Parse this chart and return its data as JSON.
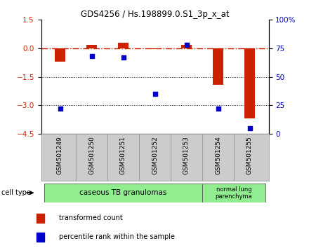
{
  "title": "GDS4256 / Hs.198899.0.S1_3p_x_at",
  "samples": [
    "GSM501249",
    "GSM501250",
    "GSM501251",
    "GSM501252",
    "GSM501253",
    "GSM501254",
    "GSM501255"
  ],
  "red_values": [
    -0.7,
    0.2,
    0.3,
    -0.05,
    0.2,
    -1.9,
    -3.7
  ],
  "blue_values": [
    22,
    68,
    67,
    35,
    78,
    22,
    5
  ],
  "ylim_left": [
    -4.5,
    1.5
  ],
  "ylim_right": [
    0,
    100
  ],
  "yticks_left": [
    1.5,
    0,
    -1.5,
    -3,
    -4.5
  ],
  "yticks_right": [
    100,
    75,
    50,
    25,
    0
  ],
  "bar_color": "#CC2200",
  "dot_color": "#0000CC",
  "dashed_line_color": "#CC2200",
  "dotted_line_color": "#000000",
  "bar_width": 0.35,
  "legend_red": "transformed count",
  "legend_blue": "percentile rank within the sample",
  "cell_type_label": "cell type",
  "ct_region1_label": "caseous TB granulomas",
  "ct_region2_label": "normal lung\nparenchyma",
  "ct_color": "#90EE90",
  "xlabel_bg_color": "#CCCCCC",
  "background_color": "#FFFFFF"
}
